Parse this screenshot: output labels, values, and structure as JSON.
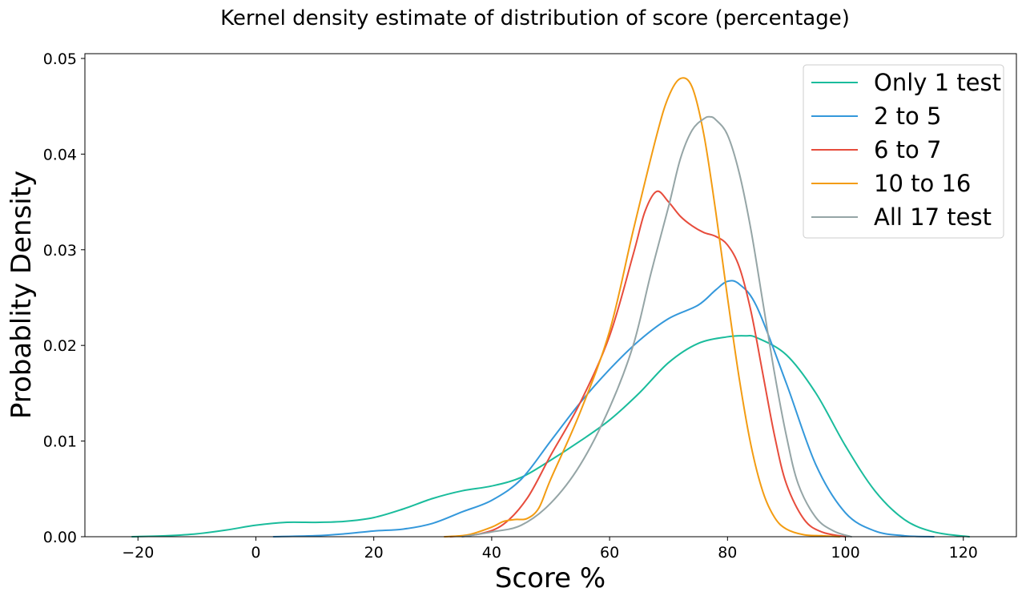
{
  "chart_data": {
    "type": "line",
    "title": "Kernel density estimate of distribution of score (percentage)",
    "xlabel": "Score %",
    "ylabel": "Probablity Density",
    "xlim": [
      -29,
      129
    ],
    "ylim": [
      0,
      0.0505
    ],
    "xticks": [
      -20,
      0,
      20,
      40,
      60,
      80,
      100,
      120
    ],
    "xtick_labels": [
      "−20",
      "0",
      "20",
      "40",
      "60",
      "80",
      "100",
      "120"
    ],
    "yticks": [
      0,
      0.01,
      0.02,
      0.03,
      0.04,
      0.05
    ],
    "ytick_labels": [
      "0.00",
      "0.01",
      "0.02",
      "0.03",
      "0.04",
      "0.05"
    ],
    "grid": false,
    "legend_position": "top-right",
    "series": [
      {
        "name": "Only 1 test",
        "color": "#1abc9c",
        "x": [
          -21,
          -15,
          -10,
          -5,
          0,
          5,
          10,
          15,
          20,
          25,
          30,
          35,
          40,
          45,
          50,
          55,
          60,
          65,
          70,
          75,
          80,
          83,
          85,
          90,
          95,
          100,
          105,
          110,
          115,
          121
        ],
        "y": [
          0,
          0.0001,
          0.0003,
          0.0007,
          0.0012,
          0.0015,
          0.0015,
          0.0016,
          0.002,
          0.0029,
          0.004,
          0.0048,
          0.0053,
          0.0062,
          0.008,
          0.01,
          0.0122,
          0.015,
          0.0182,
          0.0202,
          0.0209,
          0.021,
          0.0208,
          0.019,
          0.015,
          0.0095,
          0.0048,
          0.0018,
          0.0005,
          0
        ]
      },
      {
        "name": "2 to 5",
        "color": "#3498db",
        "x": [
          3,
          10,
          15,
          20,
          25,
          30,
          35,
          40,
          45,
          50,
          55,
          60,
          65,
          70,
          75,
          78,
          80,
          82,
          85,
          90,
          95,
          100,
          105,
          110,
          115
        ],
        "y": [
          0,
          0.0001,
          0.0003,
          0.0006,
          0.0008,
          0.0014,
          0.0026,
          0.0038,
          0.006,
          0.01,
          0.014,
          0.0175,
          0.0205,
          0.0228,
          0.0242,
          0.0258,
          0.0267,
          0.0264,
          0.024,
          0.016,
          0.0075,
          0.0025,
          0.0006,
          0.0001,
          0
        ]
      },
      {
        "name": "6 to 7",
        "color": "#e74c3c",
        "x": [
          33,
          38,
          42,
          46,
          50,
          55,
          60,
          64,
          66,
          68,
          70,
          72,
          74,
          76,
          78,
          80,
          82,
          84,
          86,
          88,
          90,
          93,
          96,
          100
        ],
        "y": [
          0,
          0.0003,
          0.0013,
          0.004,
          0.0085,
          0.014,
          0.021,
          0.0295,
          0.034,
          0.0361,
          0.035,
          0.0335,
          0.0325,
          0.0318,
          0.0314,
          0.0305,
          0.0282,
          0.0235,
          0.017,
          0.0105,
          0.0055,
          0.0018,
          0.0005,
          0
        ]
      },
      {
        "name": "10 to 16",
        "color": "#f39c12",
        "x": [
          32,
          36,
          40,
          42,
          44,
          46,
          48,
          50,
          55,
          60,
          64,
          68,
          70,
          72,
          74,
          76,
          78,
          80,
          82,
          84,
          86,
          88,
          90,
          93,
          96,
          99
        ],
        "y": [
          0,
          0.0002,
          0.001,
          0.0016,
          0.0018,
          0.0019,
          0.003,
          0.006,
          0.013,
          0.0215,
          0.032,
          0.042,
          0.046,
          0.0479,
          0.047,
          0.042,
          0.034,
          0.025,
          0.0165,
          0.0095,
          0.0047,
          0.002,
          0.0008,
          0.0002,
          0.0001,
          0
        ]
      },
      {
        "name": "All 17 test",
        "color": "#95a5a6",
        "x": [
          35,
          40,
          45,
          50,
          55,
          60,
          64,
          67,
          70,
          72,
          74,
          76,
          77,
          78,
          80,
          82,
          84,
          86,
          88,
          90,
          92,
          95,
          98,
          101
        ],
        "y": [
          0,
          0.0005,
          0.0012,
          0.0035,
          0.0075,
          0.0135,
          0.02,
          0.0275,
          0.0345,
          0.0395,
          0.0425,
          0.0437,
          0.0439,
          0.0436,
          0.042,
          0.038,
          0.032,
          0.0245,
          0.017,
          0.0105,
          0.0055,
          0.002,
          0.0006,
          0
        ]
      }
    ]
  }
}
